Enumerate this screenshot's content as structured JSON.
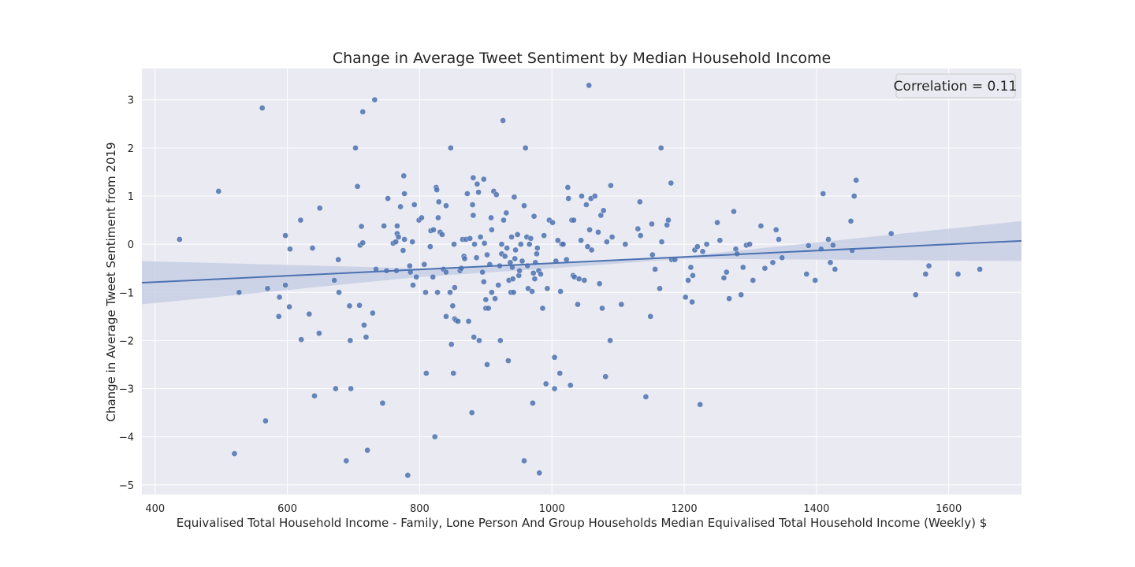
{
  "chart_data": {
    "type": "scatter",
    "title": "Change in Average Tweet Sentiment by Median Household Income",
    "xlabel": "Equivalised Total Household Income - Family, Lone Person And Group Households Median Equivalised Total Household Income (Weekly) $",
    "ylabel": "Change in Average Tweet Sentiment from 2019",
    "xlim": [
      380,
      1710
    ],
    "ylim": [
      -5.2,
      3.65
    ],
    "xticks": [
      400,
      600,
      800,
      1000,
      1200,
      1400,
      1600
    ],
    "yticks": [
      -5,
      -4,
      -3,
      -2,
      -1,
      0,
      1,
      2,
      3
    ],
    "grid": true,
    "legend": {
      "text": "Correlation = 0.11",
      "position": "top-right"
    },
    "regression": {
      "x": [
        380,
        1710
      ],
      "y": [
        -0.8,
        0.07
      ]
    },
    "confidence_band": {
      "x": [
        380,
        800,
        1000,
        1200,
        1710
      ],
      "upper": [
        -0.35,
        -0.5,
        -0.4,
        -0.25,
        0.48
      ],
      "lower": [
        -1.25,
        -0.68,
        -0.5,
        -0.3,
        -0.35
      ]
    },
    "points": [
      [
        437,
        0.1
      ],
      [
        496,
        1.1
      ],
      [
        520,
        -4.35
      ],
      [
        527,
        -1.0
      ],
      [
        562,
        2.83
      ],
      [
        567,
        -3.67
      ],
      [
        570,
        -0.92
      ],
      [
        587,
        -1.5
      ],
      [
        588,
        -1.1
      ],
      [
        597,
        0.18
      ],
      [
        597,
        -0.85
      ],
      [
        603,
        -1.3
      ],
      [
        604,
        -0.1
      ],
      [
        620,
        0.5
      ],
      [
        621,
        -1.98
      ],
      [
        633,
        -1.45
      ],
      [
        638,
        -0.08
      ],
      [
        641,
        -3.15
      ],
      [
        648,
        -1.85
      ],
      [
        649,
        0.75
      ],
      [
        671,
        -0.75
      ],
      [
        673,
        -3.0
      ],
      [
        677,
        -0.32
      ],
      [
        678,
        -1.0
      ],
      [
        689,
        -4.5
      ],
      [
        694,
        -1.28
      ],
      [
        695,
        -2.0
      ],
      [
        696,
        -3.0
      ],
      [
        703,
        2.0
      ],
      [
        706,
        1.2
      ],
      [
        709,
        -1.27
      ],
      [
        710,
        -0.02
      ],
      [
        712,
        0.37
      ],
      [
        714,
        0.03
      ],
      [
        714,
        2.75
      ],
      [
        716,
        -1.68
      ],
      [
        719,
        -1.93
      ],
      [
        721,
        -4.28
      ],
      [
        729,
        -1.43
      ],
      [
        732,
        3.0
      ],
      [
        734,
        -0.52
      ],
      [
        744,
        -3.3
      ],
      [
        746,
        0.38
      ],
      [
        750,
        -0.55
      ],
      [
        752,
        0.95
      ],
      [
        760,
        0.02
      ],
      [
        764,
        0.05
      ],
      [
        766,
        0.38
      ],
      [
        765,
        -0.55
      ],
      [
        766,
        0.22
      ],
      [
        768,
        0.15
      ],
      [
        771,
        0.78
      ],
      [
        775,
        -0.13
      ],
      [
        776,
        1.42
      ],
      [
        777,
        0.1
      ],
      [
        777,
        1.05
      ],
      [
        782,
        -4.8
      ],
      [
        785,
        -0.45
      ],
      [
        786,
        -0.58
      ],
      [
        789,
        0.05
      ],
      [
        790,
        -0.85
      ],
      [
        792,
        0.82
      ],
      [
        795,
        -0.68
      ],
      [
        799,
        0.5
      ],
      [
        803,
        0.55
      ],
      [
        807,
        -0.42
      ],
      [
        809,
        -1.0
      ],
      [
        810,
        -2.68
      ],
      [
        816,
        -0.05
      ],
      [
        817,
        0.28
      ],
      [
        820,
        -0.68
      ],
      [
        821,
        0.3
      ],
      [
        823,
        -4.0
      ],
      [
        825,
        1.18
      ],
      [
        826,
        1.13
      ],
      [
        827,
        -1.0
      ],
      [
        828,
        0.55
      ],
      [
        829,
        0.88
      ],
      [
        831,
        0.25
      ],
      [
        834,
        0.2
      ],
      [
        836,
        -0.52
      ],
      [
        840,
        -0.58
      ],
      [
        840,
        0.8
      ],
      [
        840,
        -1.5
      ],
      [
        846,
        -1.0
      ],
      [
        847,
        2.0
      ],
      [
        848,
        -2.08
      ],
      [
        850,
        -1.28
      ],
      [
        851,
        -2.68
      ],
      [
        852,
        0.0
      ],
      [
        853,
        -0.9
      ],
      [
        853,
        -1.55
      ],
      [
        855,
        -1.58
      ],
      [
        858,
        -1.6
      ],
      [
        861,
        -0.55
      ],
      [
        863,
        -0.5
      ],
      [
        865,
        0.1
      ],
      [
        867,
        -0.25
      ],
      [
        868,
        -0.3
      ],
      [
        870,
        0.1
      ],
      [
        872,
        1.05
      ],
      [
        874,
        -1.6
      ],
      [
        876,
        0.12
      ],
      [
        879,
        -3.5
      ],
      [
        880,
        0.82
      ],
      [
        881,
        1.38
      ],
      [
        881,
        0.6
      ],
      [
        882,
        -1.93
      ],
      [
        883,
        0.0
      ],
      [
        886,
        -0.28
      ],
      [
        887,
        1.25
      ],
      [
        889,
        1.08
      ],
      [
        890,
        -2.0
      ],
      [
        892,
        0.15
      ],
      [
        895,
        -0.58
      ],
      [
        897,
        1.35
      ],
      [
        897,
        -0.78
      ],
      [
        898,
        0.02
      ],
      [
        900,
        -1.33
      ],
      [
        900,
        -1.15
      ],
      [
        902,
        -2.5
      ],
      [
        902,
        -0.22
      ],
      [
        904,
        -1.33
      ],
      [
        906,
        -0.42
      ],
      [
        908,
        0.55
      ],
      [
        909,
        -1.0
      ],
      [
        909,
        0.3
      ],
      [
        912,
        1.1
      ],
      [
        914,
        -1.13
      ],
      [
        916,
        1.03
      ],
      [
        919,
        -0.85
      ],
      [
        921,
        -0.45
      ],
      [
        922,
        -2.0
      ],
      [
        924,
        0.0
      ],
      [
        924,
        -0.2
      ],
      [
        926,
        2.57
      ],
      [
        927,
        0.5
      ],
      [
        929,
        -0.25
      ],
      [
        931,
        0.65
      ],
      [
        932,
        -0.08
      ],
      [
        934,
        -2.42
      ],
      [
        935,
        -0.75
      ],
      [
        937,
        -0.38
      ],
      [
        938,
        -1.0
      ],
      [
        939,
        0.15
      ],
      [
        940,
        -0.48
      ],
      [
        941,
        -0.72
      ],
      [
        942,
        -1.0
      ],
      [
        943,
        0.98
      ],
      [
        944,
        -0.3
      ],
      [
        945,
        -0.12
      ],
      [
        948,
        0.2
      ],
      [
        950,
        -0.65
      ],
      [
        951,
        -0.55
      ],
      [
        953,
        0.0
      ],
      [
        955,
        -0.35
      ],
      [
        958,
        0.8
      ],
      [
        958,
        -4.5
      ],
      [
        960,
        2.0
      ],
      [
        962,
        0.15
      ],
      [
        963,
        -0.45
      ],
      [
        964,
        -0.92
      ],
      [
        966,
        0.0
      ],
      [
        968,
        0.12
      ],
      [
        970,
        -0.98
      ],
      [
        971,
        -3.3
      ],
      [
        972,
        -0.6
      ],
      [
        973,
        0.58
      ],
      [
        974,
        -0.72
      ],
      [
        975,
        -0.38
      ],
      [
        977,
        -0.2
      ],
      [
        978,
        -0.08
      ],
      [
        980,
        -0.55
      ],
      [
        981,
        -4.75
      ],
      [
        983,
        -0.62
      ],
      [
        986,
        -1.33
      ],
      [
        988,
        0.18
      ],
      [
        991,
        -2.9
      ],
      [
        993,
        -0.92
      ],
      [
        996,
        0.5
      ],
      [
        1001,
        0.45
      ],
      [
        1004,
        -2.35
      ],
      [
        1004,
        -3.0
      ],
      [
        1006,
        -0.35
      ],
      [
        1009,
        0.08
      ],
      [
        1012,
        -2.68
      ],
      [
        1013,
        -0.98
      ],
      [
        1015,
        0.0
      ],
      [
        1017,
        0.0
      ],
      [
        1022,
        -0.32
      ],
      [
        1024,
        1.18
      ],
      [
        1025,
        0.95
      ],
      [
        1028,
        -2.93
      ],
      [
        1030,
        0.5
      ],
      [
        1032,
        -0.65
      ],
      [
        1033,
        0.5
      ],
      [
        1034,
        -0.68
      ],
      [
        1039,
        -1.25
      ],
      [
        1041,
        -0.72
      ],
      [
        1044,
        0.08
      ],
      [
        1045,
        1.0
      ],
      [
        1049,
        -0.75
      ],
      [
        1052,
        0.82
      ],
      [
        1054,
        -0.05
      ],
      [
        1056,
        3.3
      ],
      [
        1057,
        0.3
      ],
      [
        1059,
        0.95
      ],
      [
        1060,
        -0.12
      ],
      [
        1065,
        1.0
      ],
      [
        1070,
        0.25
      ],
      [
        1072,
        -0.82
      ],
      [
        1074,
        0.6
      ],
      [
        1076,
        -1.33
      ],
      [
        1078,
        0.7
      ],
      [
        1081,
        -2.75
      ],
      [
        1083,
        0.05
      ],
      [
        1088,
        -2.0
      ],
      [
        1089,
        1.22
      ],
      [
        1091,
        0.15
      ],
      [
        1105,
        -1.25
      ],
      [
        1111,
        0.0
      ],
      [
        1130,
        0.32
      ],
      [
        1133,
        0.88
      ],
      [
        1134,
        0.18
      ],
      [
        1142,
        -3.17
      ],
      [
        1149,
        -1.5
      ],
      [
        1151,
        0.42
      ],
      [
        1152,
        -0.22
      ],
      [
        1156,
        -0.52
      ],
      [
        1163,
        -0.92
      ],
      [
        1165,
        2.0
      ],
      [
        1166,
        0.05
      ],
      [
        1174,
        0.4
      ],
      [
        1176,
        0.5
      ],
      [
        1180,
        1.27
      ],
      [
        1181,
        -0.32
      ],
      [
        1186,
        -0.32
      ],
      [
        1202,
        -1.1
      ],
      [
        1206,
        -0.75
      ],
      [
        1210,
        -0.48
      ],
      [
        1212,
        -1.2
      ],
      [
        1213,
        -0.65
      ],
      [
        1216,
        -0.12
      ],
      [
        1220,
        -0.05
      ],
      [
        1224,
        -3.33
      ],
      [
        1228,
        -0.15
      ],
      [
        1234,
        0.0
      ],
      [
        1250,
        0.45
      ],
      [
        1254,
        0.08
      ],
      [
        1260,
        -0.7
      ],
      [
        1264,
        -0.58
      ],
      [
        1268,
        -1.13
      ],
      [
        1275,
        0.68
      ],
      [
        1278,
        -0.1
      ],
      [
        1280,
        -0.2
      ],
      [
        1286,
        -1.05
      ],
      [
        1289,
        -0.48
      ],
      [
        1294,
        -0.02
      ],
      [
        1299,
        0.0
      ],
      [
        1304,
        -0.75
      ],
      [
        1316,
        0.38
      ],
      [
        1322,
        -0.5
      ],
      [
        1334,
        -0.38
      ],
      [
        1339,
        0.3
      ],
      [
        1343,
        0.1
      ],
      [
        1348,
        -0.28
      ],
      [
        1385,
        -0.62
      ],
      [
        1388,
        -0.03
      ],
      [
        1398,
        -0.75
      ],
      [
        1407,
        -0.1
      ],
      [
        1410,
        1.05
      ],
      [
        1418,
        0.1
      ],
      [
        1421,
        -0.38
      ],
      [
        1425,
        -0.02
      ],
      [
        1428,
        -0.52
      ],
      [
        1452,
        0.48
      ],
      [
        1454,
        -0.13
      ],
      [
        1457,
        1.0
      ],
      [
        1460,
        1.33
      ],
      [
        1513,
        0.22
      ],
      [
        1550,
        -1.05
      ],
      [
        1565,
        -0.62
      ],
      [
        1570,
        -0.45
      ],
      [
        1614,
        -0.62
      ],
      [
        1647,
        -0.52
      ]
    ],
    "colors": {
      "point": "#4c72b0",
      "line": "#4c72b0",
      "band": "#c6cde4",
      "plot_bg": "#eaeaf2",
      "grid": "#ffffff"
    }
  }
}
